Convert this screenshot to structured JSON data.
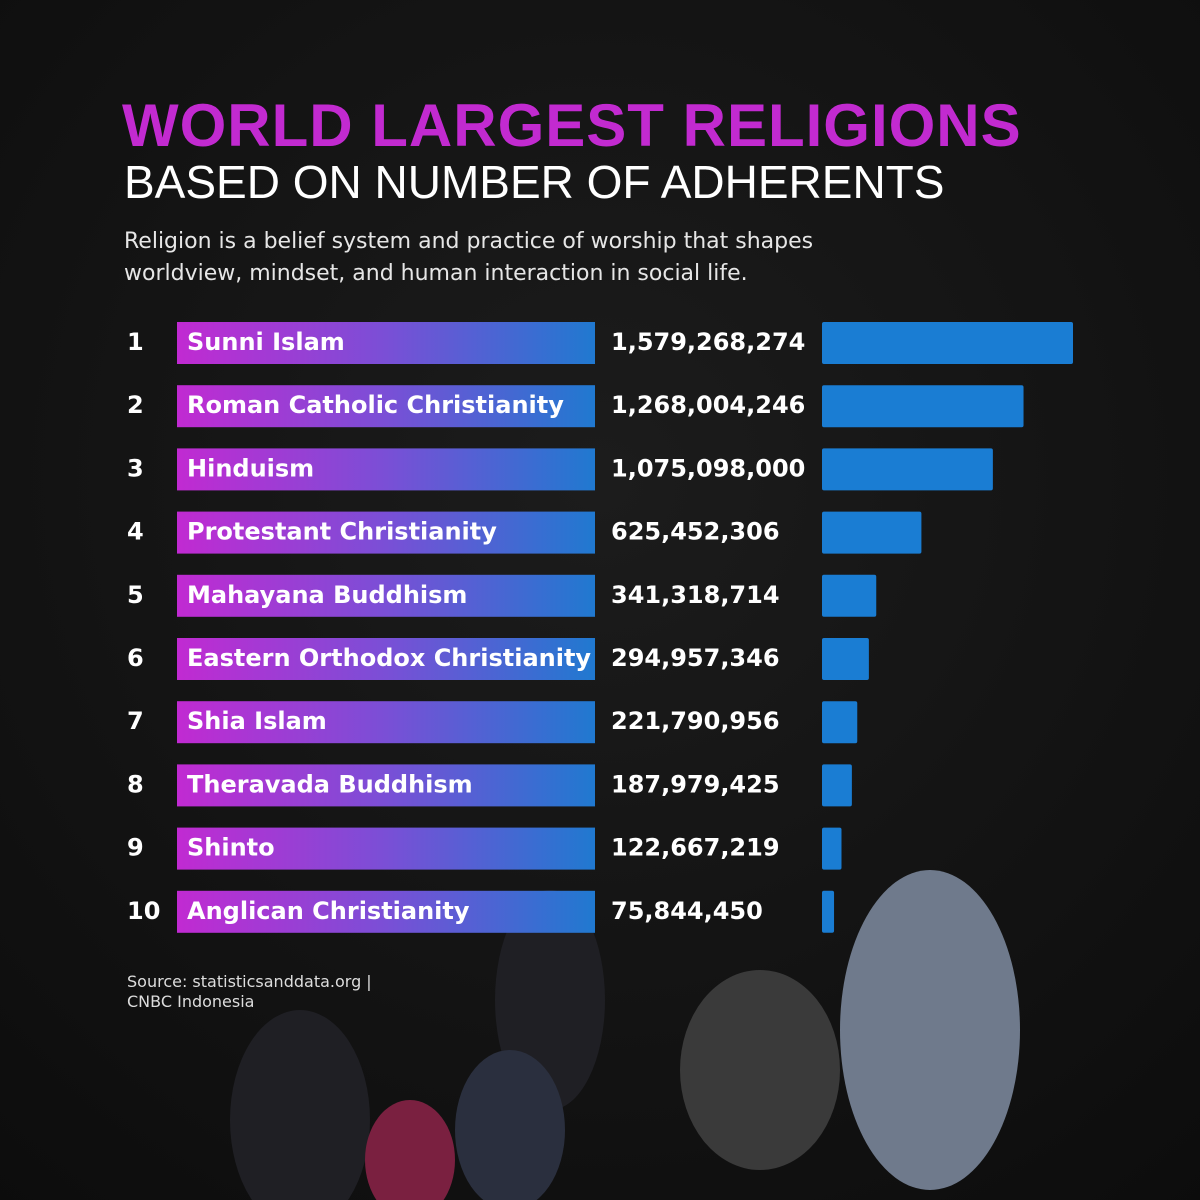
{
  "chart_data": {
    "type": "bar",
    "title": "WORLD LARGEST RELIGIONS",
    "subtitle": "BASED ON NUMBER OF ADHERENTS",
    "description": [
      "Religion is a belief system and practice of worship that shapes",
      "worldview, mindset, and human interaction in social life."
    ],
    "ranks": [
      1,
      2,
      3,
      4,
      5,
      6,
      7,
      8,
      9,
      10
    ],
    "categories": [
      "Sunni Islam",
      "Roman Catholic Christianity",
      "Hinduism",
      "Protestant Christianity",
      "Mahayana Buddhism",
      "Eastern Orthodox Christianity",
      "Shia Islam",
      "Theravada Buddhism",
      "Shinto",
      "Anglican Christianity"
    ],
    "values": [
      1579268274,
      1268004246,
      1075098000,
      625452306,
      341318714,
      294957346,
      221790956,
      187979425,
      122667219,
      75844450
    ],
    "value_labels": [
      "1,579,268,274",
      "1,268,004,246",
      "1,075,098,000",
      "625,452,306",
      "341,318,714",
      "294,957,346",
      "221,790,956",
      "187,979,425",
      "122,667,219",
      "75,844,450"
    ],
    "color": "#1a7dd3",
    "source": [
      "Source: statisticsanddata.org |",
      "CNBC Indonesia"
    ]
  }
}
